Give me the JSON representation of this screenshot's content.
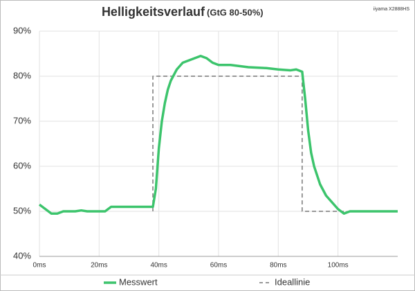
{
  "chart_data": {
    "type": "line",
    "title": "Helligkeitsverlauf",
    "subtitle": "(GtG 80-50%)",
    "annotation": "iiyama X2888HS",
    "xlim": [
      0,
      120
    ],
    "ylim": [
      40,
      90
    ],
    "xticks": [
      {
        "value": 0,
        "label": "0ms"
      },
      {
        "value": 20,
        "label": "20ms"
      },
      {
        "value": 40,
        "label": "40ms"
      },
      {
        "value": 60,
        "label": "60ms"
      },
      {
        "value": 80,
        "label": "80ms"
      },
      {
        "value": 100,
        "label": "100ms"
      }
    ],
    "yticks": [
      {
        "value": 40,
        "label": "40%"
      },
      {
        "value": 50,
        "label": "50%"
      },
      {
        "value": 60,
        "label": "60%"
      },
      {
        "value": 70,
        "label": "70%"
      },
      {
        "value": 80,
        "label": "80%"
      },
      {
        "value": 90,
        "label": "90%"
      }
    ],
    "grid": true,
    "series": [
      {
        "name": "Messwert",
        "color": "#3cc46c",
        "dash": false,
        "x": [
          0,
          2,
          4,
          6,
          8,
          10,
          12,
          14,
          16,
          18,
          20,
          22,
          24,
          26,
          28,
          30,
          32,
          34,
          36,
          38,
          39,
          40,
          41,
          42,
          43,
          44,
          46,
          48,
          50,
          52,
          54,
          56,
          58,
          60,
          64,
          70,
          76,
          80,
          84,
          86,
          88,
          89,
          90,
          91,
          92,
          94,
          96,
          98,
          100,
          102,
          104,
          108,
          112,
          116,
          120
        ],
        "values": [
          51.5,
          50.5,
          49.5,
          49.5,
          50,
          50,
          50,
          50.2,
          50,
          50,
          50,
          50,
          51,
          51,
          51,
          51,
          51,
          51,
          51,
          51,
          55,
          64,
          70,
          74,
          77,
          79,
          81.5,
          83,
          83.5,
          84,
          84.5,
          84,
          83,
          82.5,
          82.5,
          82,
          81.8,
          81.5,
          81.3,
          81.5,
          81,
          75,
          68,
          63,
          60,
          56,
          53.5,
          52,
          50.5,
          49.5,
          50,
          50,
          50,
          50,
          50
        ]
      },
      {
        "name": "Ideallinie",
        "color": "#777777",
        "dash": true,
        "x": [
          38,
          38,
          88,
          88,
          103
        ],
        "values": [
          50,
          80,
          80,
          50,
          50
        ]
      }
    ]
  }
}
